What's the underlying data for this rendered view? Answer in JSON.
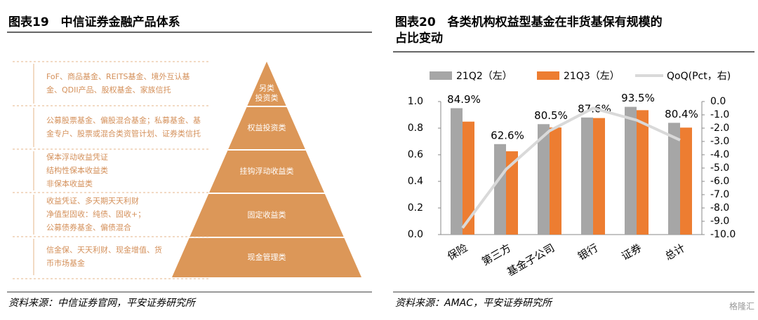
{
  "left_figure": {
    "title": "图表19　中信证券金融产品体系",
    "levels": [
      {
        "label": [
          "另类",
          "投资类"
        ],
        "description": [
          "FoF、商品基金、REITS基金、境外互认基",
          "金、QDII产品、股权基金、家族信托"
        ]
      },
      {
        "label": [
          "权益投资类"
        ],
        "description": [
          "公募股票基金、偏股混合基金；私募基金、基",
          "金专户、股票或混合类资管计划、证券类信托"
        ]
      },
      {
        "label": [
          "挂钩浮动收益类"
        ],
        "description": [
          "保本浮动收益凭证",
          "结构性保本收益类",
          "非保本收益类"
        ]
      },
      {
        "label": [
          "固定收益类"
        ],
        "description": [
          "收益凭证、多天期天天利财",
          "净值型固收：纯债、固收+；",
          "公募债券基金、偏债混合"
        ]
      },
      {
        "label": [
          "现金管理类"
        ],
        "description": [
          "信金保、天天利财、现金增值、货",
          "币市场基金"
        ]
      }
    ],
    "source": "资料来源：中信证券官网，平安证券研究所"
  },
  "chart_data": {
    "type": "bar",
    "title": "图表20　各类机构权益型基金在非货基保有规模的占比变动",
    "categories": [
      "保险",
      "第三方",
      "基金子公司",
      "银行",
      "证券",
      "总计"
    ],
    "series": [
      {
        "name": "21Q2（左）",
        "color": "#a6a6a6",
        "values": [
          0.95,
          0.68,
          0.83,
          0.88,
          0.96,
          0.84
        ]
      },
      {
        "name": "21Q3（左）",
        "color": "#ed7d31",
        "values": [
          0.849,
          0.626,
          0.805,
          0.876,
          0.935,
          0.804
        ],
        "value_labels": [
          "84.9%",
          "62.6%",
          "80.5%",
          "87.6%",
          "93.5%",
          "80.4%"
        ]
      },
      {
        "name": "QoQ(Pct，右)",
        "color": "#d9d9d9",
        "type": "line",
        "axis": "y2",
        "values": [
          -9.5,
          -5.1,
          -2.2,
          -0.5,
          -1.4,
          -2.9
        ]
      }
    ],
    "ylim": [
      0,
      1.0
    ],
    "yticks": [
      {
        "value": 0,
        "label": "0.0"
      },
      0.2,
      0.4,
      0.6,
      0.8,
      {
        "value": 1.0,
        "label": "1.0"
      }
    ],
    "y2lim": [
      -10,
      0
    ],
    "y2ticks": [
      {
        "value": 0,
        "label": "0.0"
      },
      {
        "value": -1,
        "label": "-1.0"
      },
      {
        "value": -2,
        "label": "-2.0"
      },
      {
        "value": -3,
        "label": "-3.0"
      },
      {
        "value": -4,
        "label": "-4.0"
      },
      {
        "value": -5,
        "label": "-5.0"
      },
      {
        "value": -6,
        "label": "-6.0"
      },
      {
        "value": -7,
        "label": "-7.0"
      },
      {
        "value": -8,
        "label": "-8.0"
      },
      {
        "value": -9,
        "label": "-9.0"
      },
      {
        "value": -10,
        "label": "-10.0"
      }
    ],
    "legend": "top",
    "source": "资料来源：AMAC，平安证券研究所"
  },
  "watermark": "格隆汇"
}
